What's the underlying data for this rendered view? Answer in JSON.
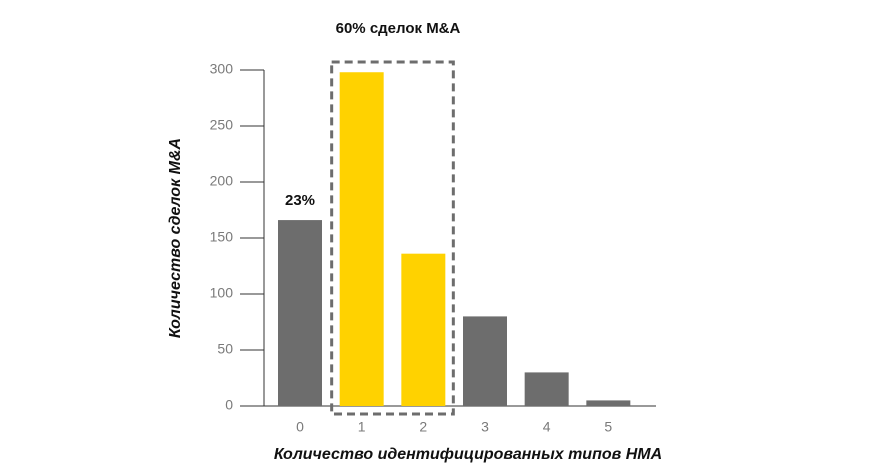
{
  "chart_data": {
    "type": "bar",
    "title": "60% сделок M&A",
    "annotation": "23%",
    "x_label": "Количество идентифицированных типов НМА",
    "y_label": "Количество сделок M&A",
    "categories": [
      "0",
      "1",
      "2",
      "3",
      "4",
      "5"
    ],
    "values": [
      166,
      298,
      136,
      80,
      30,
      5
    ],
    "colors": [
      "#6d6d6d",
      "#ffd200",
      "#ffd200",
      "#6d6d6d",
      "#6d6d6d",
      "#6d6d6d"
    ],
    "ylim": [
      0,
      300
    ],
    "yticks": [
      0,
      50,
      100,
      150,
      200,
      250,
      300
    ]
  }
}
